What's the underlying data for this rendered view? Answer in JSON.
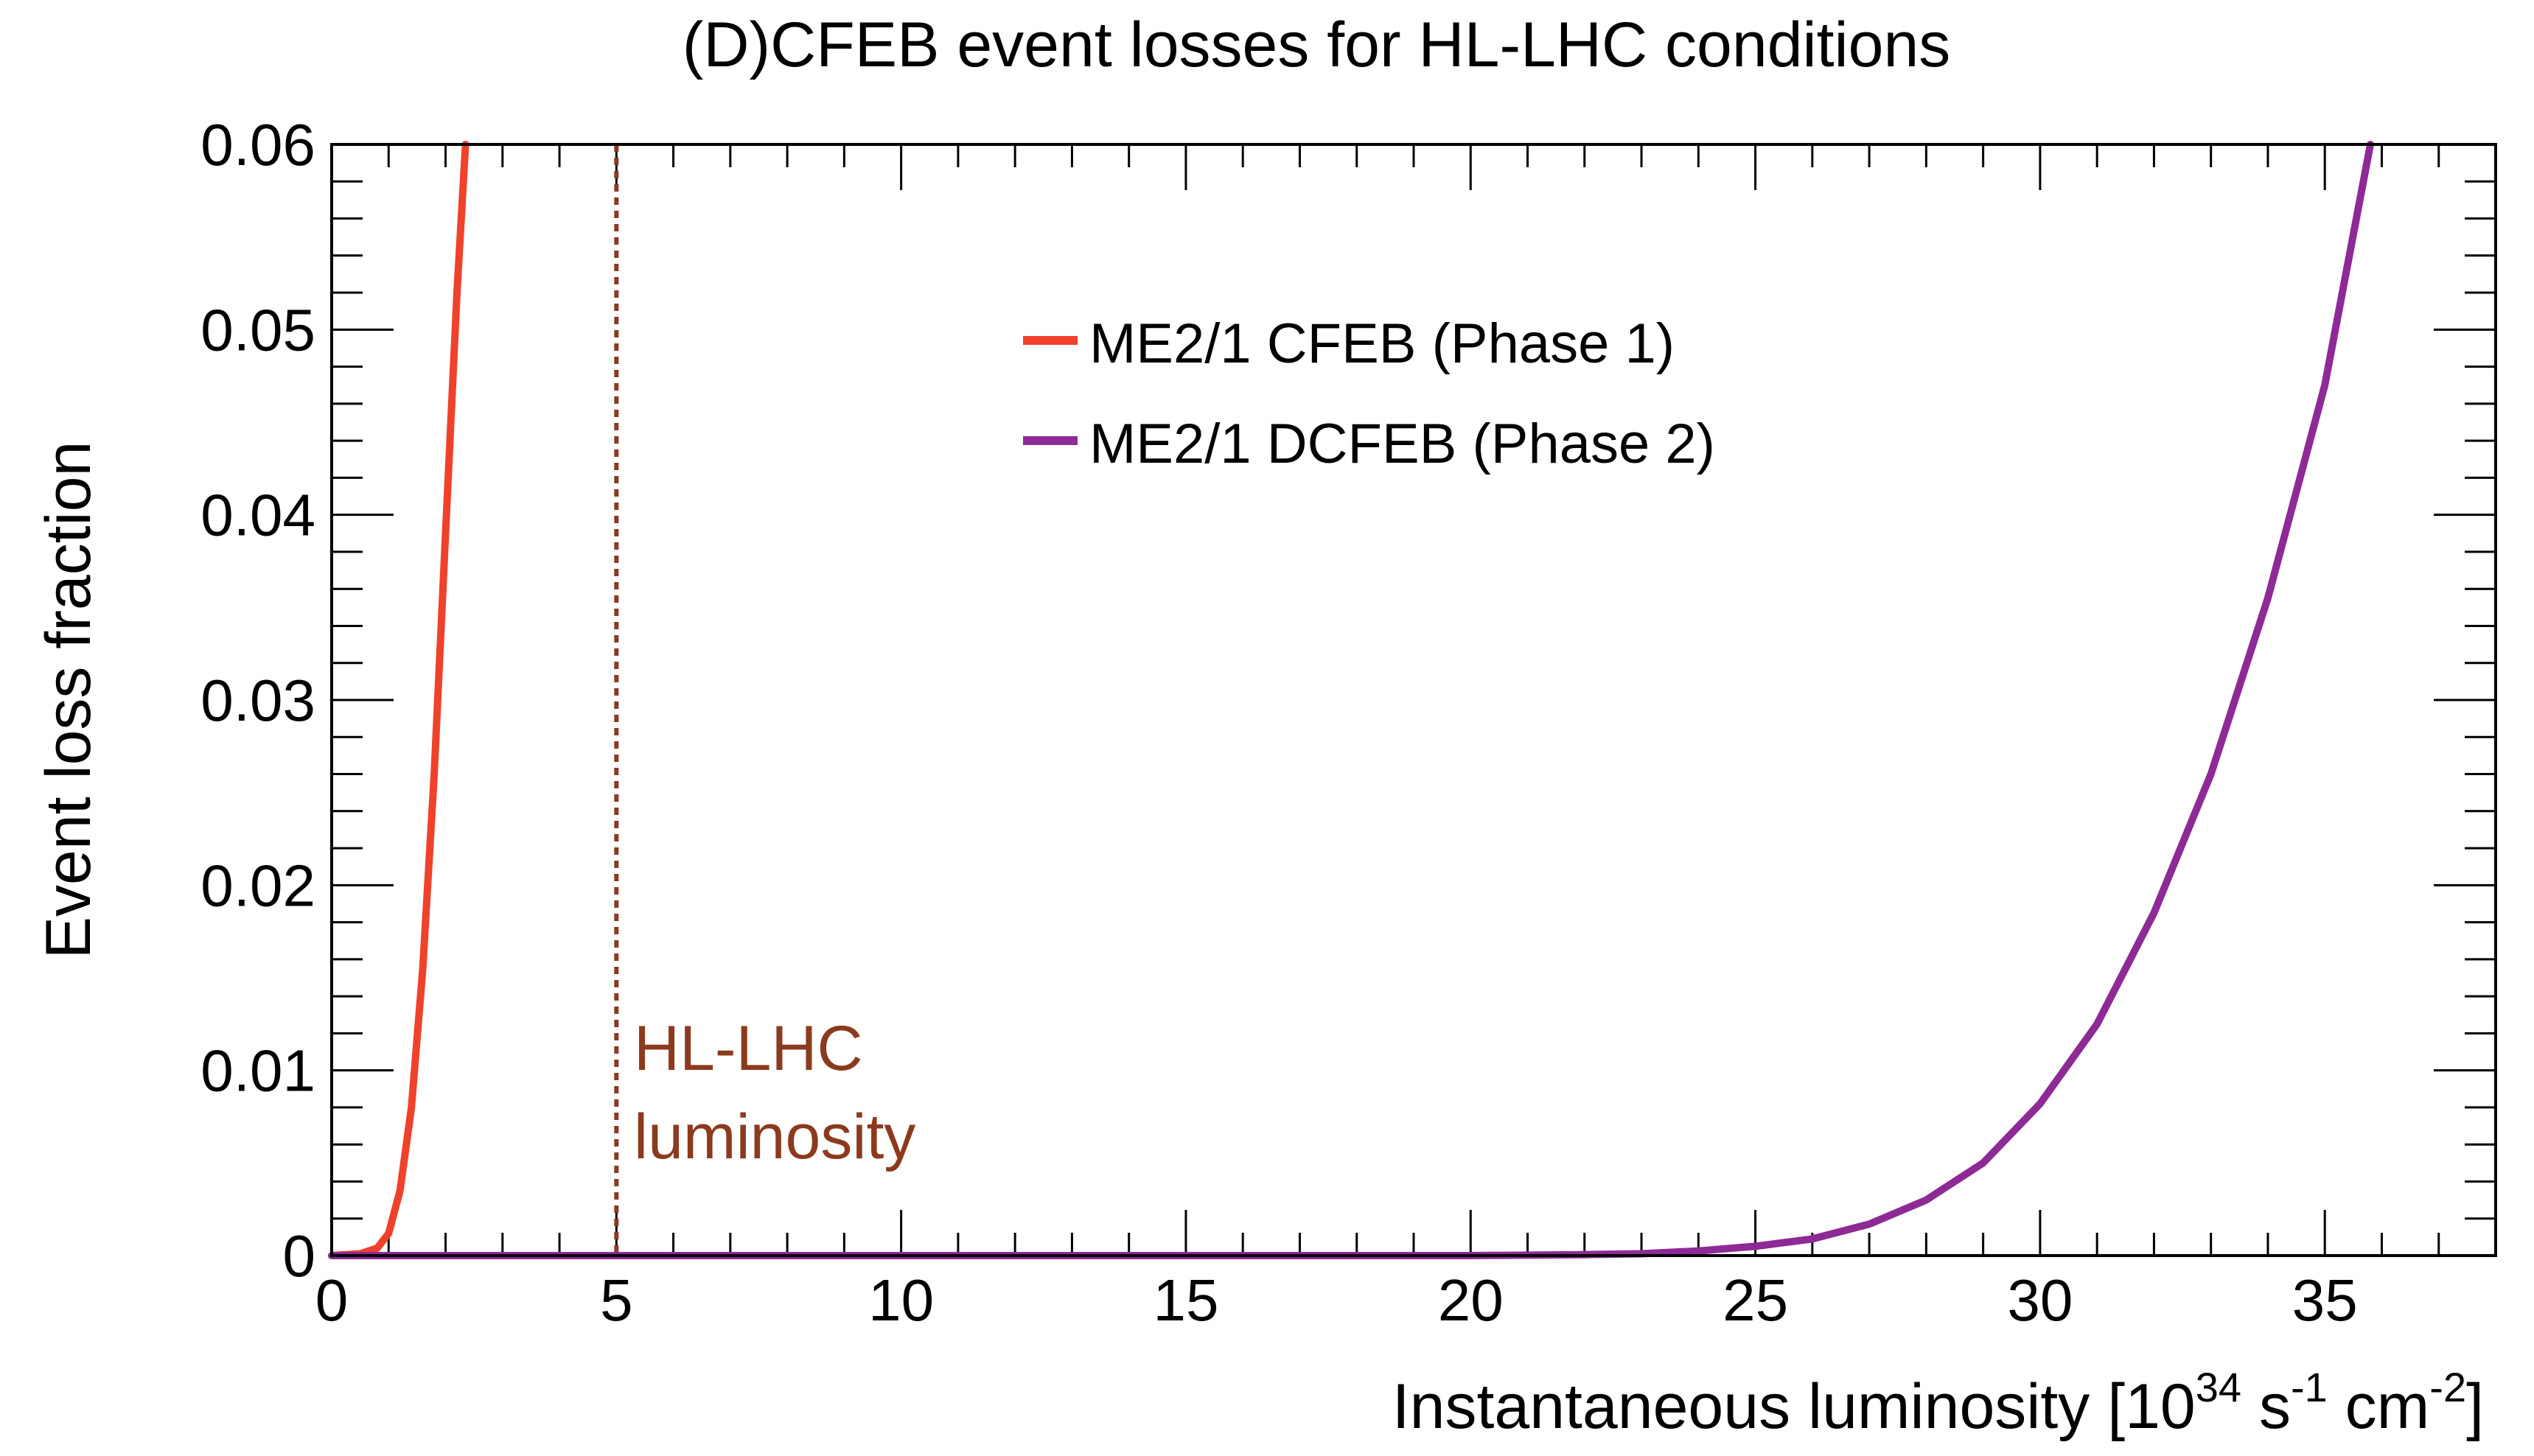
{
  "chart_data": {
    "type": "line",
    "title": "(D)CFEB event losses for HL-LHC conditions",
    "xlabel": {
      "main": "Instantaneous luminosity [10",
      "exp1": "34",
      "mid1": " s",
      "exp2": "-1",
      "mid2": " cm",
      "exp3": "-2",
      "end": "]"
    },
    "ylabel": "Event loss fraction",
    "xlim": [
      0,
      38
    ],
    "ylim": [
      0,
      0.06
    ],
    "x_ticks": [
      {
        "value": 0,
        "label": "0"
      },
      {
        "value": 5,
        "label": "5"
      },
      {
        "value": 10,
        "label": "10"
      },
      {
        "value": 15,
        "label": "15"
      },
      {
        "value": 20,
        "label": "20"
      },
      {
        "value": 25,
        "label": "25"
      },
      {
        "value": 30,
        "label": "30"
      },
      {
        "value": 35,
        "label": "35"
      }
    ],
    "y_ticks": [
      {
        "value": 0,
        "label": "0"
      },
      {
        "value": 0.01,
        "label": "0.01"
      },
      {
        "value": 0.02,
        "label": "0.02"
      },
      {
        "value": 0.03,
        "label": "0.03"
      },
      {
        "value": 0.04,
        "label": "0.04"
      },
      {
        "value": 0.05,
        "label": "0.05"
      },
      {
        "value": 0.06,
        "label": "0.06"
      }
    ],
    "series": [
      {
        "name": "ME2/1 CFEB (Phase 1)",
        "color": "#f0412a",
        "x": [
          0,
          0.5,
          0.8,
          1.0,
          1.2,
          1.4,
          1.6,
          1.8,
          2.0,
          2.2,
          2.35
        ],
        "y": [
          0,
          0.0001,
          0.0004,
          0.0012,
          0.0035,
          0.008,
          0.0155,
          0.026,
          0.039,
          0.052,
          0.06
        ]
      },
      {
        "name": "ME2/1 DCFEB (Phase 2)",
        "color": "#8e2a96",
        "x": [
          0,
          20,
          22,
          23,
          24,
          25,
          26,
          27,
          28,
          29,
          30,
          31,
          32,
          33,
          34,
          35,
          35.8
        ],
        "y": [
          0,
          0,
          5e-05,
          0.0001,
          0.00025,
          0.0005,
          0.0009,
          0.0017,
          0.003,
          0.005,
          0.0082,
          0.0125,
          0.0185,
          0.026,
          0.0355,
          0.047,
          0.06
        ]
      }
    ],
    "reference_line": {
      "x": 5,
      "color": "#8b3a1e",
      "label_line1": "HL-LHC",
      "label_line2": "luminosity"
    },
    "legend_position": "top-center",
    "grid": false
  }
}
